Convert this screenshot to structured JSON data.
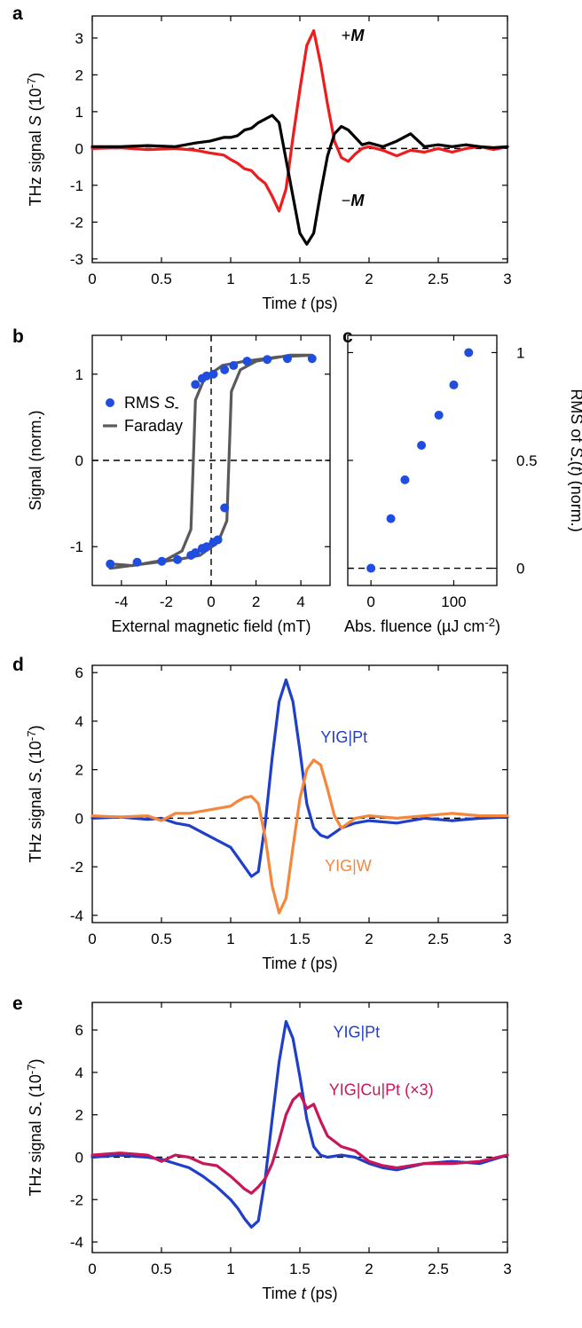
{
  "chart_data": [
    {
      "id": "a",
      "panel_label": "a",
      "type": "line",
      "xlabel_parts": [
        "Time ",
        "t",
        " (ps)"
      ],
      "ylabel_parts": [
        "THz signal ",
        "S",
        " (10",
        "-7",
        ")"
      ],
      "xlim": [
        0,
        3
      ],
      "ylim": [
        -3.1,
        3.6
      ],
      "xticks": [
        0,
        0.5,
        1,
        1.5,
        2,
        2.5,
        3
      ],
      "xtick_labels": [
        "0",
        "0.5",
        "1",
        "1.5",
        "2",
        "2.5",
        "3"
      ],
      "yticks": [
        -3,
        -2,
        -1,
        0,
        1,
        2,
        3
      ],
      "ytick_labels": [
        "-3",
        "-2",
        "-1",
        "0",
        "1",
        "2",
        "3"
      ],
      "zero_line": "dashed",
      "series": [
        {
          "name": "+M",
          "label_parts": [
            "+",
            "M"
          ],
          "color": "#ee1c1c",
          "x": [
            0,
            0.2,
            0.4,
            0.6,
            0.75,
            0.85,
            0.95,
            1.0,
            1.05,
            1.1,
            1.15,
            1.2,
            1.25,
            1.3,
            1.35,
            1.4,
            1.45,
            1.5,
            1.55,
            1.6,
            1.65,
            1.7,
            1.75,
            1.8,
            1.85,
            1.9,
            1.95,
            2.0,
            2.1,
            2.2,
            2.3,
            2.4,
            2.5,
            2.6,
            2.7,
            2.8,
            2.9,
            3.0
          ],
          "y": [
            0,
            0.02,
            -0.03,
            0.0,
            -0.05,
            -0.12,
            -0.18,
            -0.3,
            -0.4,
            -0.55,
            -0.6,
            -0.8,
            -0.95,
            -1.3,
            -1.7,
            -1.1,
            0.3,
            1.6,
            2.8,
            3.2,
            2.3,
            1.2,
            0.2,
            -0.25,
            -0.35,
            -0.15,
            0.0,
            0.05,
            -0.05,
            -0.2,
            -0.05,
            -0.1,
            0.0,
            -0.1,
            0.0,
            0.05,
            -0.03,
            0.05
          ]
        },
        {
          "name": "-M",
          "label_parts": [
            "−",
            "M"
          ],
          "color": "#000000",
          "x": [
            0,
            0.2,
            0.4,
            0.6,
            0.75,
            0.85,
            0.95,
            1.0,
            1.05,
            1.1,
            1.15,
            1.2,
            1.25,
            1.3,
            1.35,
            1.4,
            1.45,
            1.5,
            1.55,
            1.6,
            1.65,
            1.7,
            1.75,
            1.8,
            1.85,
            1.9,
            1.95,
            2.0,
            2.1,
            2.2,
            2.3,
            2.4,
            2.5,
            2.6,
            2.7,
            2.8,
            2.9,
            3.0
          ],
          "y": [
            0.05,
            0.05,
            0.08,
            0.05,
            0.15,
            0.2,
            0.3,
            0.3,
            0.35,
            0.5,
            0.55,
            0.7,
            0.8,
            0.9,
            0.7,
            -0.3,
            -1.3,
            -2.3,
            -2.6,
            -2.3,
            -1.2,
            -0.2,
            0.4,
            0.6,
            0.5,
            0.3,
            0.1,
            0.15,
            0.05,
            0.2,
            0.4,
            0.05,
            0.1,
            0.05,
            0.1,
            0.05,
            0.02,
            0.05
          ]
        }
      ]
    },
    {
      "id": "b",
      "panel_label": "b",
      "type": "line+scatter",
      "xlabel_parts": [
        "External magnetic field (mT)"
      ],
      "ylabel_parts": [
        "Signal (norm.)"
      ],
      "xlim": [
        -5.3,
        5.3
      ],
      "ylim": [
        -1.45,
        1.45
      ],
      "xticks": [
        -4,
        -2,
        0,
        2,
        4
      ],
      "xtick_labels": [
        "-4",
        "-2",
        "0",
        "2",
        "4"
      ],
      "yticks": [
        -1,
        0,
        1
      ],
      "ytick_labels": [
        "-1",
        "0",
        "1"
      ],
      "zero_line": "dashed",
      "vzero_line": "dashed",
      "legend": {
        "position": "upper-left",
        "entries": [
          {
            "kind": "marker",
            "parts": [
              "RMS ",
              "S",
              "-"
            ],
            "color": "#1f4de0"
          },
          {
            "kind": "line",
            "parts": [
              "Faraday"
            ],
            "color": "#5a5a5a"
          }
        ]
      },
      "series": [
        {
          "name": "Faraday",
          "kind": "line",
          "color": "#5a5a5a",
          "x": [
            -4.5,
            -3.5,
            -2,
            -1.3,
            -0.9,
            -0.7,
            -0.3,
            0.5,
            1.5,
            3,
            4.5,
            3.5,
            2,
            1.3,
            0.9,
            0.7,
            0.3,
            -0.5,
            -1.5,
            -3,
            -4.5
          ],
          "y": [
            -1.2,
            -1.22,
            -1.15,
            -1.05,
            -0.8,
            0.7,
            0.95,
            1.1,
            1.15,
            1.2,
            1.22,
            1.22,
            1.15,
            1.05,
            0.8,
            -0.7,
            -0.95,
            -1.1,
            -1.15,
            -1.2,
            -1.25
          ]
        },
        {
          "name": "RMS S-",
          "kind": "scatter",
          "color": "#1f4de0",
          "x": [
            -4.5,
            -3.3,
            -2.2,
            -1.5,
            -0.9,
            -0.7,
            -0.4,
            -0.2,
            0.1,
            0.3,
            0.6,
            -0.7,
            -0.4,
            -0.2,
            0.1,
            0.6,
            1,
            1.6,
            2.5,
            3.4,
            4.5
          ],
          "y": [
            -1.2,
            -1.18,
            -1.17,
            -1.15,
            -1.1,
            -1.07,
            -1.02,
            -1.0,
            -0.95,
            -0.92,
            -0.55,
            0.88,
            0.95,
            0.98,
            1.0,
            1.05,
            1.1,
            1.15,
            1.17,
            1.18,
            1.18
          ]
        }
      ]
    },
    {
      "id": "c",
      "panel_label": "c",
      "type": "scatter",
      "xlabel_parts": [
        "Abs. fluence (µJ cm",
        "-2",
        ")"
      ],
      "ylabel_parts": [
        "RMS of ",
        "S",
        "-",
        "(",
        "t",
        ") (norm.)"
      ],
      "xlim": [
        -28,
        152
      ],
      "ylim": [
        -0.08,
        1.08
      ],
      "xticks": [
        0,
        100
      ],
      "xtick_labels": [
        "0",
        "100"
      ],
      "yticks": [
        0,
        0.5,
        1
      ],
      "ytick_labels": [
        "0",
        "0.5",
        "1"
      ],
      "zero_line": "dashed",
      "series": [
        {
          "name": "RMS",
          "color": "#1f4de0",
          "x": [
            0,
            24,
            41,
            61,
            82,
            100,
            118
          ],
          "y": [
            0,
            0.23,
            0.41,
            0.57,
            0.71,
            0.85,
            1.0
          ]
        }
      ]
    },
    {
      "id": "d",
      "panel_label": "d",
      "type": "line",
      "xlabel_parts": [
        "Time ",
        "t",
        " (ps)"
      ],
      "ylabel_parts": [
        "THz signal ",
        "S",
        "-",
        " (10",
        "-7",
        ")"
      ],
      "xlim": [
        0,
        3
      ],
      "ylim": [
        -4.3,
        6.3
      ],
      "xticks": [
        0,
        0.5,
        1,
        1.5,
        2,
        2.5,
        3
      ],
      "xtick_labels": [
        "0",
        "0.5",
        "1",
        "1.5",
        "2",
        "2.5",
        "3"
      ],
      "yticks": [
        -4,
        -2,
        0,
        2,
        4,
        6
      ],
      "ytick_labels": [
        "-4",
        "-2",
        "0",
        "2",
        "4",
        "6"
      ],
      "zero_line": "dashed",
      "series": [
        {
          "name": "YIG|Pt",
          "label": "YIG|Pt",
          "color": "#1f3fc9",
          "x": [
            0,
            0.2,
            0.4,
            0.5,
            0.6,
            0.7,
            0.8,
            0.9,
            1.0,
            1.05,
            1.1,
            1.15,
            1.2,
            1.25,
            1.3,
            1.35,
            1.4,
            1.45,
            1.5,
            1.55,
            1.6,
            1.65,
            1.7,
            1.75,
            1.8,
            1.9,
            2.0,
            2.2,
            2.4,
            2.6,
            2.8,
            3.0
          ],
          "y": [
            0,
            0.05,
            -0.05,
            0.0,
            -0.2,
            -0.3,
            -0.6,
            -0.9,
            -1.2,
            -1.6,
            -2.0,
            -2.4,
            -2.2,
            -0.2,
            2.5,
            4.8,
            5.7,
            4.8,
            2.8,
            0.6,
            -0.4,
            -0.7,
            -0.8,
            -0.6,
            -0.4,
            -0.2,
            -0.1,
            -0.2,
            0.0,
            -0.1,
            0.0,
            0.05
          ]
        },
        {
          "name": "YIG|W",
          "label": "YIG|W",
          "color": "#f5873c",
          "x": [
            0,
            0.2,
            0.4,
            0.5,
            0.6,
            0.7,
            0.8,
            0.9,
            1.0,
            1.05,
            1.1,
            1.15,
            1.2,
            1.25,
            1.3,
            1.35,
            1.4,
            1.45,
            1.5,
            1.55,
            1.6,
            1.65,
            1.7,
            1.75,
            1.8,
            1.9,
            2.0,
            2.2,
            2.4,
            2.6,
            2.8,
            3.0
          ],
          "y": [
            0.1,
            0.05,
            0.1,
            -0.1,
            0.2,
            0.2,
            0.3,
            0.4,
            0.5,
            0.7,
            0.85,
            0.9,
            0.6,
            -0.8,
            -2.8,
            -3.9,
            -3.3,
            -1.2,
            0.8,
            2.0,
            2.4,
            2.2,
            1.2,
            0.1,
            -0.4,
            0.0,
            0.1,
            0.0,
            0.1,
            0.2,
            0.1,
            0.1
          ]
        }
      ]
    },
    {
      "id": "e",
      "panel_label": "e",
      "type": "line",
      "xlabel_parts": [
        "Time ",
        "t",
        " (ps)"
      ],
      "ylabel_parts": [
        "THz signal  ",
        "S",
        "-",
        " (10",
        "-7",
        ")"
      ],
      "xlim": [
        0,
        3
      ],
      "ylim": [
        -4.5,
        7.3
      ],
      "xticks": [
        0,
        0.5,
        1,
        1.5,
        2,
        2.5,
        3
      ],
      "xtick_labels": [
        "0",
        "0.5",
        "1",
        "1.5",
        "2",
        "2.5",
        "3"
      ],
      "yticks": [
        -4,
        -2,
        0,
        2,
        4,
        6
      ],
      "ytick_labels": [
        "-4",
        "-2",
        "0",
        "2",
        "4",
        "6"
      ],
      "zero_line": "dashed",
      "series": [
        {
          "name": "YIG|Pt",
          "label": "YIG|Pt",
          "color": "#1f3fc9",
          "x": [
            0,
            0.2,
            0.4,
            0.5,
            0.6,
            0.7,
            0.8,
            0.9,
            1.0,
            1.05,
            1.1,
            1.15,
            1.2,
            1.25,
            1.3,
            1.35,
            1.4,
            1.45,
            1.5,
            1.55,
            1.6,
            1.65,
            1.7,
            1.8,
            1.9,
            2.0,
            2.1,
            2.2,
            2.4,
            2.6,
            2.8,
            3.0
          ],
          "y": [
            0,
            0.1,
            0.0,
            -0.1,
            -0.3,
            -0.5,
            -0.9,
            -1.4,
            -2.0,
            -2.4,
            -2.9,
            -3.3,
            -3.0,
            -1.0,
            1.8,
            4.5,
            6.4,
            5.6,
            3.8,
            1.8,
            0.5,
            0.1,
            0.0,
            0.1,
            0.0,
            -0.3,
            -0.5,
            -0.6,
            -0.3,
            -0.2,
            -0.3,
            0.1
          ]
        },
        {
          "name": "YIG|Cu|Pt (x3)",
          "label": "YIG|Cu|Pt (×3)",
          "color": "#c8165a",
          "x": [
            0,
            0.2,
            0.4,
            0.5,
            0.6,
            0.7,
            0.8,
            0.9,
            1.0,
            1.05,
            1.1,
            1.15,
            1.2,
            1.25,
            1.3,
            1.35,
            1.4,
            1.45,
            1.5,
            1.55,
            1.6,
            1.65,
            1.7,
            1.8,
            1.9,
            2.0,
            2.1,
            2.2,
            2.4,
            2.6,
            2.8,
            3.0
          ],
          "y": [
            0.1,
            0.2,
            0.1,
            -0.2,
            0.1,
            0.0,
            -0.3,
            -0.4,
            -0.9,
            -1.2,
            -1.5,
            -1.7,
            -1.4,
            -1.0,
            -0.3,
            0.8,
            2.0,
            2.7,
            3.0,
            2.3,
            2.5,
            1.7,
            1.0,
            0.5,
            0.3,
            -0.2,
            -0.4,
            -0.5,
            -0.3,
            -0.3,
            -0.2,
            0.1
          ]
        }
      ]
    }
  ]
}
